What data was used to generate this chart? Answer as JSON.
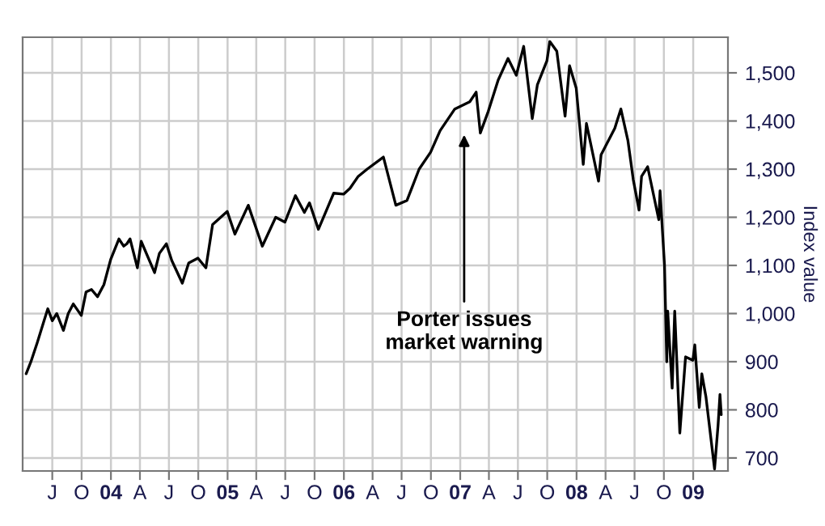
{
  "chart_data": {
    "type": "line",
    "ylabel": "Index value",
    "x": [
      "2003-04-10",
      "2003-04-25",
      "2003-05-15",
      "2003-06-05",
      "2003-06-17",
      "2003-07-01",
      "2003-07-15",
      "2003-08-05",
      "2003-08-20",
      "2003-09-05",
      "2003-09-30",
      "2003-10-15",
      "2003-11-01",
      "2003-11-20",
      "2003-12-10",
      "2003-12-31",
      "2004-01-26",
      "2004-02-10",
      "2004-02-20",
      "2004-03-01",
      "2004-03-24",
      "2004-04-05",
      "2004-05-17",
      "2004-06-01",
      "2004-06-23",
      "2004-07-10",
      "2004-08-12",
      "2004-09-01",
      "2004-09-30",
      "2004-10-25",
      "2004-11-15",
      "2004-12-31",
      "2005-01-24",
      "2005-03-07",
      "2005-04-20",
      "2005-06-01",
      "2005-06-30",
      "2005-08-02",
      "2005-08-30",
      "2005-09-15",
      "2005-10-13",
      "2005-11-30",
      "2005-12-31",
      "2006-01-20",
      "2006-02-15",
      "2006-03-15",
      "2006-05-05",
      "2006-06-13",
      "2006-07-18",
      "2006-08-25",
      "2006-09-30",
      "2006-10-30",
      "2006-12-15",
      "2007-01-31",
      "2007-02-20",
      "2007-03-05",
      "2007-03-30",
      "2007-04-30",
      "2007-05-31",
      "2007-06-26",
      "2007-07-19",
      "2007-08-15",
      "2007-08-31",
      "2007-09-30",
      "2007-10-09",
      "2007-10-31",
      "2007-11-26",
      "2007-12-10",
      "2007-12-31",
      "2008-01-22",
      "2008-02-01",
      "2008-03-10",
      "2008-03-18",
      "2008-04-30",
      "2008-05-19",
      "2008-06-10",
      "2008-06-27",
      "2008-07-15",
      "2008-07-23",
      "2008-08-11",
      "2008-09-15",
      "2008-09-19",
      "2008-10-03",
      "2008-10-10",
      "2008-10-13",
      "2008-10-27",
      "2008-11-04",
      "2008-11-20",
      "2008-12-08",
      "2008-12-31",
      "2009-01-06",
      "2009-01-20",
      "2009-01-28",
      "2009-02-10",
      "2009-03-09",
      "2009-03-20",
      "2009-03-26",
      "2009-03-30"
    ],
    "series": [
      {
        "color": "#000000",
        "values": [
          875,
          900,
          940,
          985,
          1010,
          985,
          1000,
          965,
          1000,
          1020,
          996,
          1045,
          1050,
          1035,
          1060,
          1112,
          1155,
          1140,
          1145,
          1155,
          1095,
          1150,
          1085,
          1125,
          1145,
          1110,
          1063,
          1105,
          1115,
          1095,
          1185,
          1212,
          1165,
          1225,
          1140,
          1200,
          1190,
          1245,
          1210,
          1230,
          1175,
          1250,
          1248,
          1260,
          1285,
          1300,
          1325,
          1225,
          1235,
          1300,
          1335,
          1380,
          1425,
          1440,
          1460,
          1375,
          1420,
          1485,
          1530,
          1495,
          1555,
          1405,
          1475,
          1525,
          1565,
          1545,
          1410,
          1515,
          1468,
          1310,
          1395,
          1275,
          1330,
          1385,
          1425,
          1360,
          1278,
          1215,
          1285,
          1305,
          1195,
          1255,
          1100,
          900,
          1005,
          845,
          1005,
          752,
          910,
          903,
          935,
          805,
          875,
          827,
          677,
          768,
          832,
          790
        ]
      }
    ],
    "xlim": [
      "2003-03-30",
      "2009-04-20"
    ],
    "xticks": [
      {
        "value": "2003-07-01",
        "label": "J"
      },
      {
        "value": "2003-10-01",
        "label": "O"
      },
      {
        "value": "2004-01-01",
        "label": "04"
      },
      {
        "value": "2004-04-01",
        "label": "A"
      },
      {
        "value": "2004-07-01",
        "label": "J"
      },
      {
        "value": "2004-10-01",
        "label": "O"
      },
      {
        "value": "2005-01-01",
        "label": "05"
      },
      {
        "value": "2005-04-01",
        "label": "A"
      },
      {
        "value": "2005-07-01",
        "label": "J"
      },
      {
        "value": "2005-10-01",
        "label": "O"
      },
      {
        "value": "2006-01-01",
        "label": "06"
      },
      {
        "value": "2006-04-01",
        "label": "A"
      },
      {
        "value": "2006-07-01",
        "label": "J"
      },
      {
        "value": "2006-10-01",
        "label": "O"
      },
      {
        "value": "2007-01-01",
        "label": "07"
      },
      {
        "value": "2007-04-01",
        "label": "A"
      },
      {
        "value": "2007-07-01",
        "label": "J"
      },
      {
        "value": "2007-10-01",
        "label": "O"
      },
      {
        "value": "2008-01-01",
        "label": "08"
      },
      {
        "value": "2008-04-01",
        "label": "A"
      },
      {
        "value": "2008-07-01",
        "label": "J"
      },
      {
        "value": "2008-10-01",
        "label": "O"
      },
      {
        "value": "2009-01-01",
        "label": "09"
      }
    ],
    "ylim": [
      673,
      1574
    ],
    "yticks": [
      {
        "value": 700,
        "label": "700"
      },
      {
        "value": 800,
        "label": "800"
      },
      {
        "value": 900,
        "label": "900"
      },
      {
        "value": 1000,
        "label": "1,000"
      },
      {
        "value": 1100,
        "label": "1,100"
      },
      {
        "value": 1200,
        "label": "1,200"
      },
      {
        "value": 1300,
        "label": "1,300"
      },
      {
        "value": 1400,
        "label": "1,400"
      },
      {
        "value": 1500,
        "label": "1,500"
      }
    ],
    "grid": true,
    "legend": false,
    "annotations": [
      "Porter issues\nmarket warning"
    ]
  }
}
